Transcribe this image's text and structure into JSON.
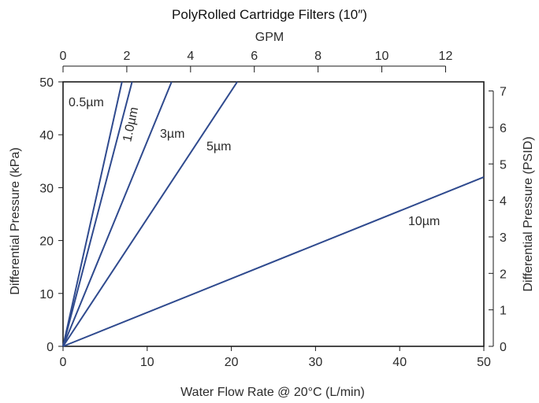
{
  "chart_data": {
    "type": "line",
    "title": "PolyRolled Cartridge Filters (10″)",
    "xlabel": "Water Flow Rate @ 20°C (L/min)",
    "ylabel": "Differential Pressure (kPa)",
    "x2label": "GPM",
    "y2label": "Differential Pressure (PSID)",
    "xlim": [
      0,
      50
    ],
    "ylim": [
      0,
      50
    ],
    "x2lim": [
      0,
      13.2
    ],
    "y2lim": [
      0,
      7.25
    ],
    "x_ticks": [
      0,
      10,
      20,
      30,
      40,
      50
    ],
    "y_ticks": [
      0,
      10,
      20,
      30,
      40,
      50
    ],
    "x2_ticks": [
      0,
      2,
      4,
      6,
      8,
      10,
      12
    ],
    "y2_ticks": [
      0,
      1,
      2,
      3,
      4,
      5,
      6,
      7
    ],
    "grid": false,
    "line_color": "#2f4a8e",
    "series": [
      {
        "name": "0.5µm",
        "x": [
          0,
          7.0
        ],
        "y": [
          0,
          50
        ]
      },
      {
        "name": "1.0µm",
        "x": [
          0,
          8.2
        ],
        "y": [
          0,
          50
        ]
      },
      {
        "name": "3µm",
        "x": [
          0,
          12.9
        ],
        "y": [
          0,
          50
        ]
      },
      {
        "name": "5µm",
        "x": [
          0,
          20.7
        ],
        "y": [
          0,
          50
        ]
      },
      {
        "name": "10µm",
        "x": [
          0,
          50
        ],
        "y": [
          0,
          32
        ]
      }
    ]
  }
}
